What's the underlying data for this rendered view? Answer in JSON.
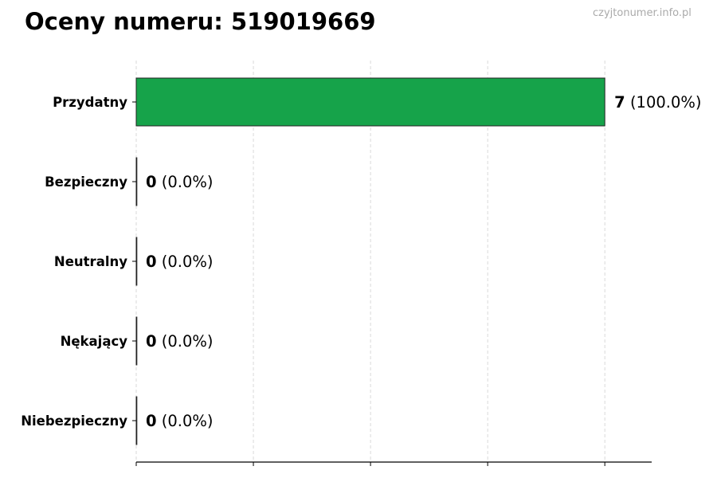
{
  "chart_data": {
    "type": "bar",
    "orientation": "horizontal",
    "title": "Oceny numeru: 519019669",
    "categories": [
      "Przydatny",
      "Bezpieczny",
      "Neutralny",
      "Nękający",
      "Niebezpieczny"
    ],
    "values": [
      7,
      0,
      0,
      0,
      0
    ],
    "percent_labels": [
      "(100.0%)",
      "(0.0%)",
      "(0.0%)",
      "(0.0%)",
      "(0.0%)"
    ],
    "xlim": [
      0,
      7.7
    ],
    "x_ticks": [
      0,
      1.75,
      3.5,
      5.25,
      7
    ],
    "grid": "vertical dashed",
    "bar_color": "#16a34a",
    "xlabel": "",
    "ylabel": ""
  },
  "watermark": "czyjtonumer.info.pl"
}
